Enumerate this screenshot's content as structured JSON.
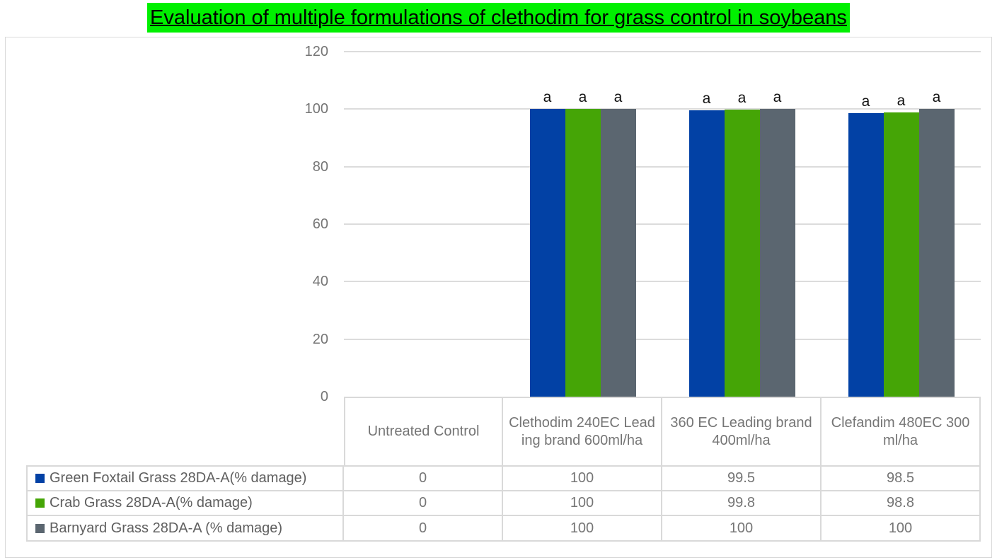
{
  "title": {
    "text": "Evaluation of multiple formulations of clethodim for grass control in soybeans",
    "highlight_color": "#00f000",
    "text_color": "#000000"
  },
  "chart_data": {
    "type": "bar",
    "title": "Evaluation of multiple formulations of clethodim for grass control in soybeans",
    "categories": [
      "Untreated Control",
      "Clethodim 240EC Leading brand 600ml/ha",
      "360 EC Leading brand 400ml/ha",
      "Clefandim 480EC 300ml/ha"
    ],
    "series": [
      {
        "name": "Green Foxtail Grass 28DA-A(% damage)",
        "color": "#0241a5",
        "values": [
          0,
          100,
          99.5,
          98.5
        ]
      },
      {
        "name": "Crab Grass 28DA-A(% damage)",
        "color": "#45a506",
        "values": [
          0,
          100,
          99.8,
          98.8
        ]
      },
      {
        "name": "Barnyard Grass 28DA-A (% damage)",
        "color": "#5b6670",
        "values": [
          0,
          100,
          100,
          100
        ]
      }
    ],
    "xlabel": "",
    "ylabel": "",
    "ylim": [
      0,
      120
    ],
    "yticks": [
      0,
      20,
      40,
      60,
      80,
      100,
      120
    ],
    "grid": true,
    "bar_annotation": "a",
    "legend_position": "table-left",
    "data_table_shown": true
  },
  "colors": {
    "gridline": "#dcdcdc",
    "table_border": "#d9d9d9",
    "tick_label": "#757575",
    "annotation": "#111111"
  }
}
